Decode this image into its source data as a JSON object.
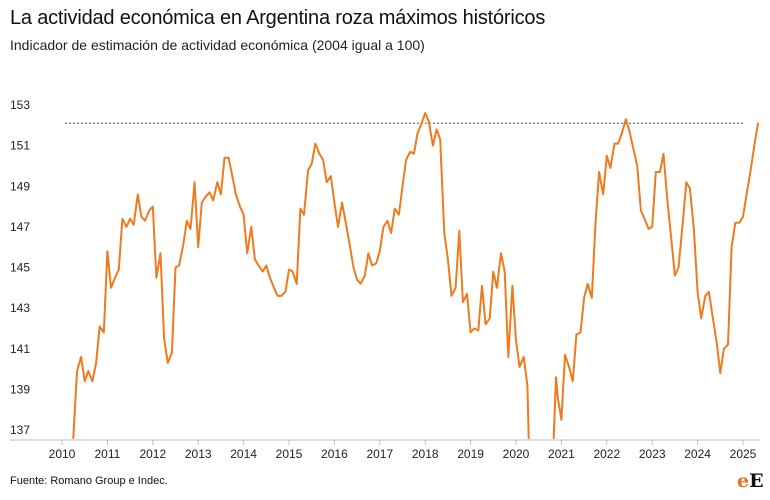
{
  "header": {
    "title": "La actividad económica en Argentina roza máximos históricos",
    "subtitle": "Indicador de estimación de actividad económica (2004 igual a 100)"
  },
  "footer": {
    "source": "Fuente: Romano Group e Indec.",
    "logo_letter_1": "e",
    "logo_letter_2": "E"
  },
  "colors": {
    "line": "#f07a1e",
    "reference": "#555555",
    "axis": "#bbbbbb"
  },
  "chart_data": {
    "type": "line",
    "title": "La actividad económica en Argentina roza máximos históricos",
    "subtitle": "Indicador de estimación de actividad económica (2004 igual a 100)",
    "xlabel": "",
    "ylabel": "",
    "xlim": [
      2010,
      2025
    ],
    "ylim": [
      136.5,
      153
    ],
    "y_ticks": [
      137,
      139,
      141,
      143,
      145,
      147,
      149,
      151,
      153
    ],
    "x_ticks": [
      2010,
      2011,
      2012,
      2013,
      2014,
      2015,
      2016,
      2017,
      2018,
      2019,
      2020,
      2021,
      2022,
      2023,
      2024,
      2025
    ],
    "grid": false,
    "reference_line": {
      "value": 152.1,
      "style": "dotted"
    },
    "series": [
      {
        "points": [
          [
            2010.25,
            136.6
          ],
          [
            2010.33,
            139.9
          ],
          [
            2010.42,
            140.6
          ],
          [
            2010.5,
            139.4
          ],
          [
            2010.58,
            139.9
          ],
          [
            2010.67,
            139.4
          ],
          [
            2010.75,
            140.3
          ],
          [
            2010.83,
            142.1
          ],
          [
            2010.92,
            141.8
          ],
          [
            2011.0,
            145.8
          ],
          [
            2011.08,
            144.0
          ],
          [
            2011.17,
            144.5
          ],
          [
            2011.25,
            144.9
          ],
          [
            2011.33,
            147.4
          ],
          [
            2011.42,
            147.0
          ],
          [
            2011.5,
            147.4
          ],
          [
            2011.58,
            147.1
          ],
          [
            2011.67,
            148.6
          ],
          [
            2011.75,
            147.5
          ],
          [
            2011.83,
            147.3
          ],
          [
            2011.92,
            147.8
          ],
          [
            2012.0,
            148.0
          ],
          [
            2012.08,
            144.5
          ],
          [
            2012.17,
            145.7
          ],
          [
            2012.25,
            141.5
          ],
          [
            2012.33,
            140.3
          ],
          [
            2012.42,
            140.8
          ],
          [
            2012.5,
            145.0
          ],
          [
            2012.58,
            145.1
          ],
          [
            2012.67,
            146.1
          ],
          [
            2012.75,
            147.3
          ],
          [
            2012.83,
            146.9
          ],
          [
            2012.92,
            149.2
          ],
          [
            2013.0,
            146.0
          ],
          [
            2013.08,
            148.2
          ],
          [
            2013.17,
            148.5
          ],
          [
            2013.25,
            148.7
          ],
          [
            2013.33,
            148.3
          ],
          [
            2013.42,
            149.2
          ],
          [
            2013.5,
            148.6
          ],
          [
            2013.58,
            150.4
          ],
          [
            2013.67,
            150.4
          ],
          [
            2013.75,
            149.5
          ],
          [
            2013.83,
            148.6
          ],
          [
            2013.92,
            148.0
          ],
          [
            2014.0,
            147.6
          ],
          [
            2014.08,
            145.7
          ],
          [
            2014.17,
            147.0
          ],
          [
            2014.25,
            145.4
          ],
          [
            2014.33,
            145.1
          ],
          [
            2014.42,
            144.8
          ],
          [
            2014.5,
            145.1
          ],
          [
            2014.58,
            144.5
          ],
          [
            2014.67,
            144.0
          ],
          [
            2014.75,
            143.6
          ],
          [
            2014.83,
            143.6
          ],
          [
            2014.92,
            143.8
          ],
          [
            2015.0,
            144.9
          ],
          [
            2015.08,
            144.8
          ],
          [
            2015.17,
            144.2
          ],
          [
            2015.25,
            147.9
          ],
          [
            2015.33,
            147.6
          ],
          [
            2015.42,
            149.8
          ],
          [
            2015.5,
            150.1
          ],
          [
            2015.58,
            151.1
          ],
          [
            2015.67,
            150.6
          ],
          [
            2015.75,
            150.3
          ],
          [
            2015.83,
            149.2
          ],
          [
            2015.92,
            149.5
          ],
          [
            2016.0,
            148.2
          ],
          [
            2016.08,
            147.0
          ],
          [
            2016.17,
            148.2
          ],
          [
            2016.25,
            147.2
          ],
          [
            2016.33,
            146.2
          ],
          [
            2016.42,
            145.0
          ],
          [
            2016.5,
            144.4
          ],
          [
            2016.58,
            144.2
          ],
          [
            2016.67,
            144.6
          ],
          [
            2016.75,
            145.7
          ],
          [
            2016.83,
            145.1
          ],
          [
            2016.92,
            145.2
          ],
          [
            2017.0,
            145.8
          ],
          [
            2017.08,
            147.0
          ],
          [
            2017.17,
            147.3
          ],
          [
            2017.25,
            146.7
          ],
          [
            2017.33,
            147.9
          ],
          [
            2017.42,
            147.6
          ],
          [
            2017.5,
            149.0
          ],
          [
            2017.58,
            150.3
          ],
          [
            2017.67,
            150.7
          ],
          [
            2017.75,
            150.6
          ],
          [
            2017.83,
            151.6
          ],
          [
            2017.92,
            152.1
          ],
          [
            2018.0,
            152.6
          ],
          [
            2018.08,
            152.2
          ],
          [
            2018.17,
            151.0
          ],
          [
            2018.25,
            151.8
          ],
          [
            2018.33,
            151.3
          ],
          [
            2018.42,
            146.7
          ],
          [
            2018.5,
            145.4
          ],
          [
            2018.58,
            143.6
          ],
          [
            2018.67,
            144.0
          ],
          [
            2018.75,
            146.8
          ],
          [
            2018.83,
            143.3
          ],
          [
            2018.92,
            143.7
          ],
          [
            2019.0,
            141.8
          ],
          [
            2019.08,
            142.0
          ],
          [
            2019.17,
            141.9
          ],
          [
            2019.25,
            144.1
          ],
          [
            2019.33,
            142.2
          ],
          [
            2019.42,
            142.5
          ],
          [
            2019.5,
            144.8
          ],
          [
            2019.58,
            144.0
          ],
          [
            2019.67,
            145.7
          ],
          [
            2019.75,
            144.8
          ],
          [
            2019.83,
            140.6
          ],
          [
            2019.92,
            144.1
          ],
          [
            2020.0,
            141.4
          ],
          [
            2020.08,
            140.1
          ],
          [
            2020.17,
            140.6
          ],
          [
            2020.25,
            139.2
          ],
          [
            2020.28,
            136.6
          ]
        ]
      },
      {
        "points": [
          [
            2020.83,
            136.6
          ],
          [
            2020.88,
            139.6
          ],
          [
            2020.92,
            138.6
          ],
          [
            2021.0,
            137.5
          ],
          [
            2021.08,
            140.7
          ],
          [
            2021.17,
            140.1
          ],
          [
            2021.25,
            139.4
          ],
          [
            2021.33,
            141.7
          ],
          [
            2021.42,
            141.8
          ],
          [
            2021.5,
            143.5
          ],
          [
            2021.58,
            144.2
          ],
          [
            2021.67,
            143.5
          ],
          [
            2021.75,
            147.2
          ],
          [
            2021.83,
            149.7
          ],
          [
            2021.92,
            148.6
          ],
          [
            2022.0,
            150.5
          ],
          [
            2022.08,
            149.9
          ],
          [
            2022.17,
            151.1
          ],
          [
            2022.25,
            151.1
          ],
          [
            2022.33,
            151.6
          ],
          [
            2022.42,
            152.3
          ],
          [
            2022.5,
            151.7
          ],
          [
            2022.58,
            150.9
          ],
          [
            2022.67,
            150.0
          ],
          [
            2022.75,
            147.8
          ],
          [
            2022.83,
            147.4
          ],
          [
            2022.92,
            146.9
          ],
          [
            2023.0,
            147.0
          ],
          [
            2023.08,
            149.7
          ],
          [
            2023.17,
            149.7
          ],
          [
            2023.25,
            150.6
          ],
          [
            2023.33,
            148.4
          ],
          [
            2023.42,
            146.4
          ],
          [
            2023.5,
            144.6
          ],
          [
            2023.58,
            145.0
          ],
          [
            2023.67,
            147.1
          ],
          [
            2023.75,
            149.2
          ],
          [
            2023.83,
            148.9
          ],
          [
            2023.92,
            146.8
          ],
          [
            2024.0,
            143.8
          ],
          [
            2024.08,
            142.5
          ],
          [
            2024.17,
            143.6
          ],
          [
            2024.25,
            143.8
          ],
          [
            2024.33,
            142.6
          ],
          [
            2024.42,
            141.3
          ],
          [
            2024.5,
            139.8
          ],
          [
            2024.58,
            141.0
          ],
          [
            2024.67,
            141.2
          ],
          [
            2024.75,
            146.0
          ],
          [
            2024.83,
            147.2
          ],
          [
            2024.92,
            147.2
          ],
          [
            2025.0,
            147.5
          ],
          [
            2025.08,
            148.6
          ],
          [
            2025.17,
            149.8
          ],
          [
            2025.25,
            151.0
          ],
          [
            2025.33,
            152.1
          ]
        ]
      }
    ]
  }
}
